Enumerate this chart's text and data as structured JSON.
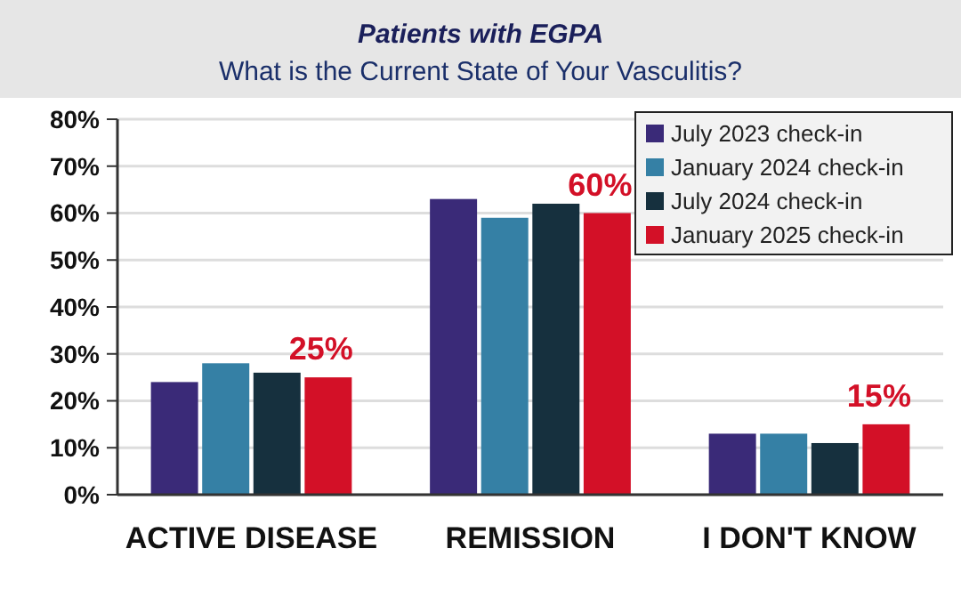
{
  "chart_data": {
    "type": "bar",
    "title": "Patients with EGPA",
    "subtitle": "What is the Current State of Your Vasculitis?",
    "categories": [
      "ACTIVE DISEASE",
      "REMISSION",
      "I DON'T KNOW"
    ],
    "series": [
      {
        "name": "July 2023 check-in",
        "color": "#3a2a78",
        "values": [
          24,
          63,
          13
        ]
      },
      {
        "name": "January 2024 check-in",
        "color": "#3580a5",
        "values": [
          28,
          59,
          13
        ]
      },
      {
        "name": "July 2024 check-in",
        "color": "#16303e",
        "values": [
          26,
          62,
          11
        ]
      },
      {
        "name": "January 2025 check-in",
        "color": "#d31027",
        "values": [
          25,
          60,
          15
        ],
        "value_labels": [
          "25%",
          "60%",
          "15%"
        ]
      }
    ],
    "ylim": [
      0,
      80
    ],
    "yticks": [
      {
        "value": 0,
        "label": "0%"
      },
      {
        "value": 10,
        "label": "10%"
      },
      {
        "value": 20,
        "label": "20%"
      },
      {
        "value": 30,
        "label": "30%"
      },
      {
        "value": 40,
        "label": "40%"
      },
      {
        "value": 50,
        "label": "50%"
      },
      {
        "value": 60,
        "label": "60%"
      },
      {
        "value": 70,
        "label": "70%"
      },
      {
        "value": 80,
        "label": "80%"
      }
    ],
    "grid": "y",
    "legend": "top right"
  }
}
